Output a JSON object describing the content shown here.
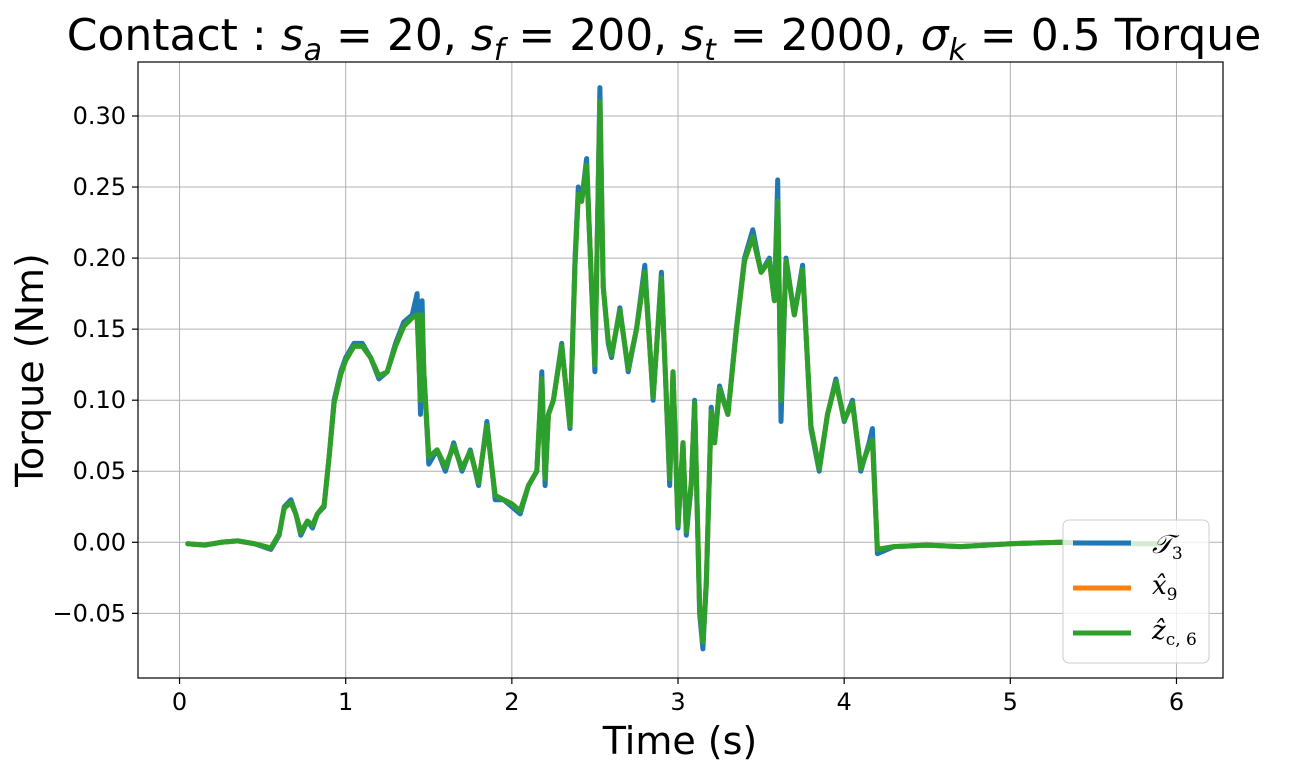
{
  "chart_data": {
    "type": "line",
    "title": "Contact : s_a = 20, s_f = 200, s_t = 2000, σ_k = 0.5 Torque",
    "title_parts": {
      "prefix": "Contact : ",
      "sa_sym": "s",
      "sa_sub": "a",
      "sa_val": " = 20, ",
      "sf_sym": "s",
      "sf_sub": "f",
      "sf_val": " = 200, ",
      "st_sym": "s",
      "st_sub": "t",
      "st_val": " = 2000, ",
      "sk_sym": "σ",
      "sk_sub": "k",
      "sk_val": " = 0.5",
      "suffix": " Torque"
    },
    "xlabel": "Time (s)",
    "ylabel": "Torque (Nm)",
    "xlim": [
      -0.25,
      6.28
    ],
    "ylim": [
      -0.0955,
      0.338
    ],
    "xticks": [
      0,
      1,
      2,
      3,
      4,
      5,
      6
    ],
    "xtick_labels": [
      "0",
      "1",
      "2",
      "3",
      "4",
      "5",
      "6"
    ],
    "yticks": [
      -0.05,
      0.0,
      0.05,
      0.1,
      0.15,
      0.2,
      0.25,
      0.3
    ],
    "ytick_labels": [
      "−0.05",
      "0.00",
      "0.05",
      "0.10",
      "0.15",
      "0.20",
      "0.25",
      "0.30"
    ],
    "grid": true,
    "legend_position": "lower-right",
    "colors": {
      "blue": "#1f77b4",
      "orange": "#ff7f0e",
      "green": "#2ca02c",
      "grid": "#b0b0b0"
    },
    "series": [
      {
        "name": "T_3",
        "legend_main": "𝒯",
        "legend_sub": "3",
        "color": "#1f77b4",
        "stroke_width": 5,
        "x": [
          0.05,
          0.15,
          0.25,
          0.35,
          0.45,
          0.55,
          0.6,
          0.63,
          0.67,
          0.7,
          0.73,
          0.77,
          0.8,
          0.83,
          0.87,
          0.9,
          0.93,
          0.97,
          1.0,
          1.05,
          1.1,
          1.15,
          1.2,
          1.25,
          1.3,
          1.35,
          1.4,
          1.43,
          1.45,
          1.46,
          1.47,
          1.5,
          1.55,
          1.6,
          1.65,
          1.7,
          1.75,
          1.8,
          1.85,
          1.9,
          1.95,
          2.0,
          2.05,
          2.1,
          2.15,
          2.18,
          2.2,
          2.22,
          2.25,
          2.3,
          2.35,
          2.38,
          2.4,
          2.42,
          2.45,
          2.5,
          2.53,
          2.55,
          2.58,
          2.6,
          2.65,
          2.7,
          2.75,
          2.8,
          2.85,
          2.9,
          2.95,
          2.97,
          3.0,
          3.03,
          3.05,
          3.08,
          3.1,
          3.13,
          3.15,
          3.17,
          3.2,
          3.22,
          3.25,
          3.3,
          3.35,
          3.4,
          3.45,
          3.5,
          3.55,
          3.58,
          3.6,
          3.62,
          3.65,
          3.7,
          3.75,
          3.8,
          3.85,
          3.9,
          3.95,
          4.0,
          4.05,
          4.1,
          4.15,
          4.17,
          4.2,
          4.3,
          4.5,
          4.7,
          5.0,
          5.3,
          5.6,
          5.9
        ],
        "y": [
          -0.001,
          -0.002,
          0.0,
          0.001,
          -0.001,
          -0.005,
          0.005,
          0.025,
          0.03,
          0.02,
          0.005,
          0.015,
          0.01,
          0.02,
          0.025,
          0.06,
          0.1,
          0.12,
          0.13,
          0.14,
          0.14,
          0.13,
          0.115,
          0.12,
          0.14,
          0.155,
          0.16,
          0.175,
          0.09,
          0.17,
          0.12,
          0.055,
          0.065,
          0.05,
          0.07,
          0.05,
          0.065,
          0.04,
          0.085,
          0.03,
          0.03,
          0.025,
          0.02,
          0.04,
          0.05,
          0.12,
          0.04,
          0.09,
          0.1,
          0.14,
          0.08,
          0.2,
          0.25,
          0.24,
          0.27,
          0.12,
          0.32,
          0.18,
          0.14,
          0.13,
          0.165,
          0.12,
          0.15,
          0.195,
          0.1,
          0.19,
          0.04,
          0.12,
          0.01,
          0.07,
          0.005,
          0.04,
          0.1,
          -0.05,
          -0.075,
          -0.03,
          0.095,
          0.07,
          0.11,
          0.09,
          0.15,
          0.2,
          0.22,
          0.19,
          0.2,
          0.17,
          0.255,
          0.085,
          0.2,
          0.16,
          0.195,
          0.08,
          0.05,
          0.09,
          0.115,
          0.085,
          0.1,
          0.05,
          0.07,
          0.08,
          -0.008,
          -0.003,
          -0.002,
          -0.003,
          -0.001,
          0.0,
          -0.001,
          -0.001
        ]
      },
      {
        "name": "x_9",
        "legend_main": "x̂",
        "legend_sub": "9",
        "color": "#ff7f0e",
        "stroke_width": 5,
        "x": [
          0.05,
          0.15,
          0.25,
          0.35,
          0.45,
          0.55,
          0.6,
          0.63,
          0.67,
          0.7,
          0.73,
          0.77,
          0.8,
          0.83,
          0.87,
          0.9,
          0.93,
          0.97,
          1.0,
          1.05,
          1.1,
          1.15,
          1.2,
          1.25,
          1.3,
          1.35,
          1.4,
          1.43,
          1.45,
          1.46,
          1.47,
          1.5,
          1.55,
          1.6,
          1.65,
          1.7,
          1.75,
          1.8,
          1.85,
          1.9,
          1.95,
          2.0,
          2.05,
          2.1,
          2.15,
          2.18,
          2.2,
          2.22,
          2.25,
          2.3,
          2.35,
          2.38,
          2.4,
          2.42,
          2.45,
          2.5,
          2.53,
          2.55,
          2.58,
          2.6,
          2.65,
          2.7,
          2.75,
          2.8,
          2.85,
          2.9,
          2.95,
          2.97,
          3.0,
          3.03,
          3.05,
          3.08,
          3.1,
          3.13,
          3.15,
          3.17,
          3.2,
          3.22,
          3.25,
          3.3,
          3.35,
          3.4,
          3.45,
          3.5,
          3.55,
          3.58,
          3.6,
          3.62,
          3.65,
          3.7,
          3.75,
          3.8,
          3.85,
          3.9,
          3.95,
          4.0,
          4.05,
          4.1,
          4.15,
          4.17,
          4.2,
          4.3,
          4.5,
          4.7,
          5.0,
          5.3,
          5.6,
          5.9
        ],
        "y": [
          -0.001,
          -0.002,
          0.0,
          0.001,
          -0.001,
          -0.004,
          0.006,
          0.024,
          0.028,
          0.02,
          0.007,
          0.015,
          0.012,
          0.02,
          0.026,
          0.06,
          0.098,
          0.118,
          0.128,
          0.138,
          0.138,
          0.13,
          0.117,
          0.12,
          0.138,
          0.152,
          0.158,
          0.16,
          0.1,
          0.16,
          0.12,
          0.06,
          0.065,
          0.053,
          0.068,
          0.052,
          0.064,
          0.042,
          0.082,
          0.033,
          0.03,
          0.027,
          0.022,
          0.04,
          0.05,
          0.115,
          0.045,
          0.09,
          0.1,
          0.138,
          0.082,
          0.195,
          0.245,
          0.24,
          0.265,
          0.125,
          0.31,
          0.18,
          0.142,
          0.132,
          0.163,
          0.122,
          0.15,
          0.19,
          0.102,
          0.186,
          0.045,
          0.12,
          0.012,
          0.07,
          0.008,
          0.042,
          0.098,
          -0.045,
          -0.07,
          -0.028,
          0.092,
          0.07,
          0.108,
          0.09,
          0.148,
          0.198,
          0.215,
          0.19,
          0.198,
          0.17,
          0.24,
          0.1,
          0.198,
          0.16,
          0.192,
          0.082,
          0.052,
          0.09,
          0.113,
          0.086,
          0.098,
          0.052,
          0.068,
          0.072,
          -0.005,
          -0.003,
          -0.002,
          -0.003,
          -0.001,
          0.0,
          -0.001,
          -0.001
        ]
      },
      {
        "name": "z_c,6",
        "legend_main": "ẑ",
        "legend_sub": "c, 6",
        "color": "#2ca02c",
        "stroke_width": 5,
        "x": [
          0.05,
          0.15,
          0.25,
          0.35,
          0.45,
          0.55,
          0.6,
          0.63,
          0.67,
          0.7,
          0.73,
          0.77,
          0.8,
          0.83,
          0.87,
          0.9,
          0.93,
          0.97,
          1.0,
          1.05,
          1.1,
          1.15,
          1.2,
          1.25,
          1.3,
          1.35,
          1.4,
          1.43,
          1.45,
          1.46,
          1.47,
          1.5,
          1.55,
          1.6,
          1.65,
          1.7,
          1.75,
          1.8,
          1.85,
          1.9,
          1.95,
          2.0,
          2.05,
          2.1,
          2.15,
          2.18,
          2.2,
          2.22,
          2.25,
          2.3,
          2.35,
          2.38,
          2.4,
          2.42,
          2.45,
          2.5,
          2.53,
          2.55,
          2.58,
          2.6,
          2.65,
          2.7,
          2.75,
          2.8,
          2.85,
          2.9,
          2.95,
          2.97,
          3.0,
          3.03,
          3.05,
          3.08,
          3.1,
          3.13,
          3.15,
          3.17,
          3.2,
          3.22,
          3.25,
          3.3,
          3.35,
          3.4,
          3.45,
          3.5,
          3.55,
          3.58,
          3.6,
          3.62,
          3.65,
          3.7,
          3.75,
          3.8,
          3.85,
          3.9,
          3.95,
          4.0,
          4.05,
          4.1,
          4.15,
          4.17,
          4.2,
          4.3,
          4.5,
          4.7,
          5.0,
          5.3,
          5.6,
          5.9
        ],
        "y": [
          -0.001,
          -0.002,
          0.0,
          0.001,
          -0.001,
          -0.004,
          0.006,
          0.024,
          0.028,
          0.02,
          0.007,
          0.015,
          0.012,
          0.02,
          0.026,
          0.06,
          0.098,
          0.118,
          0.128,
          0.138,
          0.138,
          0.13,
          0.117,
          0.12,
          0.138,
          0.152,
          0.158,
          0.16,
          0.1,
          0.16,
          0.12,
          0.06,
          0.065,
          0.053,
          0.068,
          0.052,
          0.064,
          0.042,
          0.082,
          0.033,
          0.03,
          0.027,
          0.022,
          0.04,
          0.05,
          0.115,
          0.045,
          0.09,
          0.1,
          0.138,
          0.082,
          0.195,
          0.245,
          0.24,
          0.265,
          0.125,
          0.31,
          0.18,
          0.142,
          0.132,
          0.163,
          0.122,
          0.15,
          0.19,
          0.102,
          0.186,
          0.045,
          0.12,
          0.012,
          0.07,
          0.008,
          0.042,
          0.098,
          -0.045,
          -0.07,
          -0.028,
          0.092,
          0.07,
          0.108,
          0.09,
          0.148,
          0.198,
          0.215,
          0.19,
          0.198,
          0.17,
          0.24,
          0.1,
          0.198,
          0.16,
          0.192,
          0.082,
          0.052,
          0.09,
          0.113,
          0.086,
          0.098,
          0.052,
          0.068,
          0.072,
          -0.005,
          -0.003,
          -0.002,
          -0.003,
          -0.001,
          0.0,
          -0.001,
          -0.001
        ]
      }
    ]
  }
}
